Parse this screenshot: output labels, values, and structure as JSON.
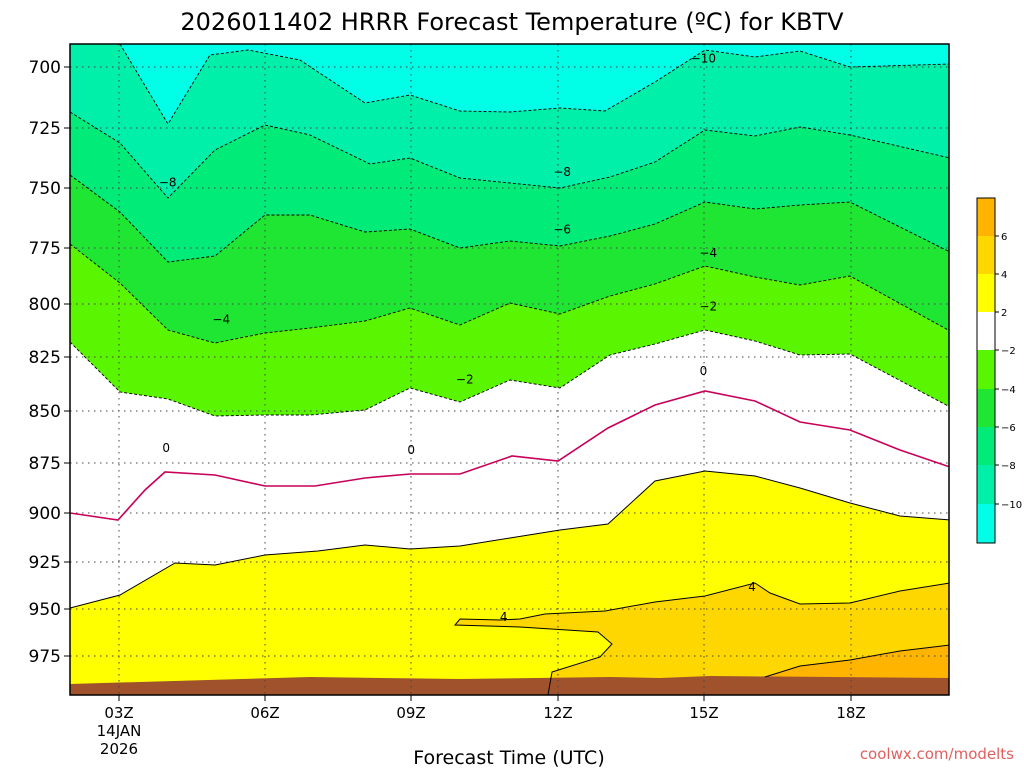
{
  "chart_data": {
    "type": "area",
    "title": "2026011402 HRRR Forecast Temperature (ºC) for KBTV",
    "xlabel": "Forecast Time (UTC)",
    "ylabel": "",
    "x_ticks": [
      "03Z",
      "06Z",
      "09Z",
      "12Z",
      "15Z",
      "18Z"
    ],
    "x_date_label": [
      "14JAN",
      "2026"
    ],
    "y_ticks": [
      700,
      725,
      750,
      775,
      800,
      825,
      850,
      875,
      900,
      925,
      950,
      975
    ],
    "y_inverted": true,
    "grid": true,
    "colorbar_labels": [
      "6",
      "4",
      "2",
      "−2",
      "−4",
      "−6",
      "−8",
      "−10"
    ],
    "contour_labels": [
      {
        "text": "−10",
        "hour": 15.0,
        "level": 696
      },
      {
        "text": "−8",
        "hour": 4.0,
        "level": 754
      },
      {
        "text": "−8",
        "hour": 12.1,
        "level": 749
      },
      {
        "text": "−6",
        "hour": 12.1,
        "level": 776
      },
      {
        "text": "−4",
        "hour": 5.1,
        "level": 818
      },
      {
        "text": "−4",
        "hour": 15.1,
        "level": 787
      },
      {
        "text": "−2",
        "hour": 10.1,
        "level": 846
      },
      {
        "text": "−2",
        "hour": 15.1,
        "level": 812
      },
      {
        "text": "0",
        "hour": 3.97,
        "level": 878
      },
      {
        "text": "0",
        "hour": 9.0,
        "level": 879
      },
      {
        "text": "0",
        "hour": 15.0,
        "level": 842
      },
      {
        "text": "4",
        "hour": 10.9,
        "level": 957
      },
      {
        "text": "4",
        "hour": 16.0,
        "level": 943
      }
    ],
    "colors": {
      "below_minus10": "#00FFE6",
      "minus10_to_minus8": "#00F0AA",
      "minus8_to_minus6": "#00EB78",
      "minus6_to_minus4": "#1EE632",
      "minus4_to_minus2": "#5AF500",
      "minus2_to_2": "#FFFFFF",
      "2_to_4": "#FFFF00",
      "4_to_6": "#FFD700",
      "above_6": "#FFB400",
      "ground": "#A0522D",
      "zero_line": "#C8005A"
    }
  },
  "credit": "coolwx.com/modelts"
}
